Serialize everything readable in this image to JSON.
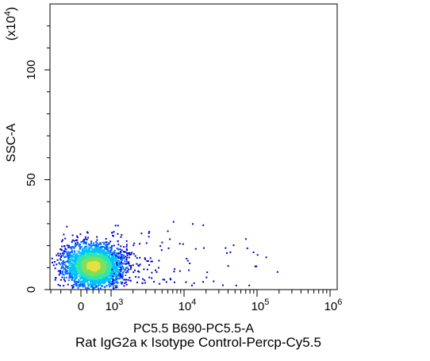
{
  "caption": "Rat IgG2a κ Isotype Control-Percp-Cy5.5",
  "chart_data": {
    "type": "scatter",
    "title": "",
    "xlabel": "PC5.5 B690-PC5.5-A",
    "ylabel": "SSC-A",
    "y_multiplier": "(x10",
    "y_multiplier_exp": "4",
    "y_multiplier_close": ")",
    "x_scale": "biexponential",
    "y_scale": "linear",
    "ylim": [
      0,
      130
    ],
    "x_ticks": [
      {
        "base": "0",
        "exp": ""
      },
      {
        "base": "10",
        "exp": "3"
      },
      {
        "base": "10",
        "exp": "4"
      },
      {
        "base": "10",
        "exp": "5"
      },
      {
        "base": "10",
        "exp": "6"
      }
    ],
    "y_ticks": [
      "0",
      "50",
      "100"
    ],
    "y_tick_values": [
      0,
      50,
      100
    ],
    "grid": false,
    "density_colormap": [
      "#0000cc",
      "#0066ff",
      "#00c0ff",
      "#2ee6b0",
      "#7fe05a",
      "#e8e040"
    ],
    "populations": [
      {
        "name": "",
        "x_center": 400,
        "y_center": 11,
        "count": 3000
      },
      {
        "x_range": [
          1000,
          300000
        ],
        "y_range": [
          2,
          32
        ],
        "count": 140
      }
    ]
  }
}
